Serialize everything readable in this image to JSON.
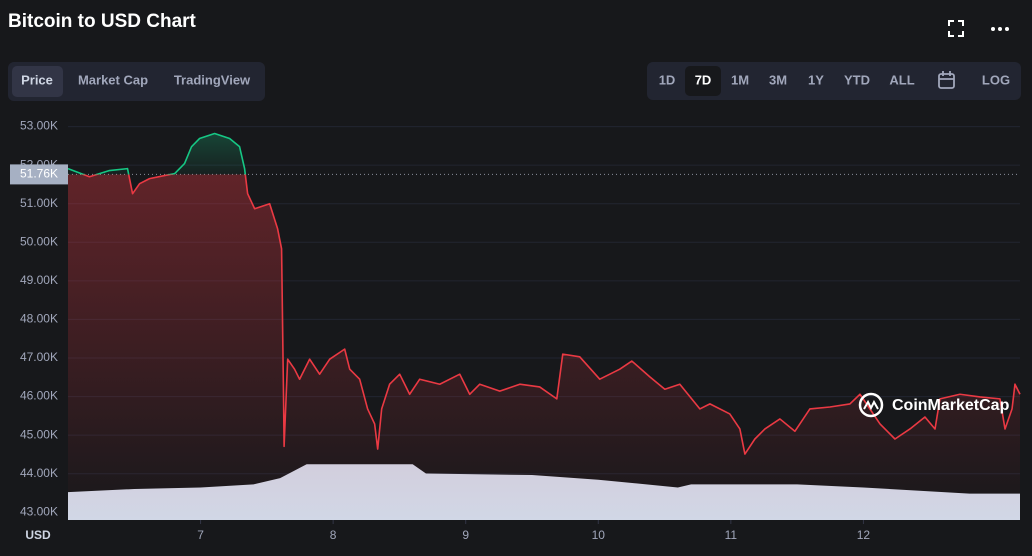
{
  "chart_data": {
    "type": "line",
    "title": "Bitcoin to USD Chart",
    "currency_label": "USD",
    "tabs": [
      "Price",
      "Market Cap",
      "TradingView"
    ],
    "ranges": [
      "1D",
      "7D",
      "1M",
      "3M",
      "1Y",
      "YTD",
      "ALL"
    ],
    "scale_button": "LOG",
    "watermark": "CoinMarketCap",
    "reference_price": {
      "value": 51760,
      "label": "51.76K"
    },
    "up_color": "#16c784",
    "down_color": "#ea3943",
    "x": [
      6.0,
      6.162,
      6.313,
      6.449,
      6.487,
      6.54,
      6.615,
      6.728,
      6.804,
      6.879,
      6.932,
      6.992,
      7.106,
      7.219,
      7.294,
      7.332,
      7.355,
      7.408,
      7.521,
      7.581,
      7.611,
      7.626,
      7.63,
      7.657,
      7.709,
      7.747,
      7.823,
      7.898,
      7.974,
      8.087,
      8.125,
      8.2,
      8.26,
      8.313,
      8.336,
      8.366,
      8.426,
      8.502,
      8.577,
      8.653,
      8.804,
      8.955,
      9.03,
      9.106,
      9.257,
      9.408,
      9.558,
      9.687,
      9.732,
      9.86,
      10.011,
      10.162,
      10.253,
      10.389,
      10.502,
      10.615,
      10.766,
      10.842,
      10.992,
      11.068,
      11.106,
      11.181,
      11.257,
      11.37,
      11.483,
      11.596,
      11.747,
      11.898,
      11.974,
      12.125,
      12.238,
      12.351,
      12.464,
      12.54,
      12.577,
      12.728,
      12.879,
      13.03,
      13.068,
      13.121,
      13.143,
      13.181
    ],
    "values": [
      51910,
      51700,
      51860,
      51910,
      51260,
      51520,
      51650,
      51730,
      51780,
      52040,
      52480,
      52690,
      52820,
      52690,
      52480,
      51910,
      51260,
      50870,
      51000,
      50350,
      49830,
      45940,
      44710,
      46970,
      46710,
      46450,
      46970,
      46580,
      46970,
      47230,
      46710,
      46450,
      45680,
      45290,
      44640,
      45680,
      46320,
      46580,
      46060,
      46450,
      46320,
      46580,
      46060,
      46320,
      46140,
      46320,
      46250,
      45940,
      47100,
      47030,
      46450,
      46710,
      46920,
      46510,
      46190,
      46320,
      45680,
      45810,
      45550,
      45160,
      44510,
      44900,
      45160,
      45420,
      45100,
      45680,
      45730,
      45810,
      46060,
      45290,
      44900,
      45160,
      45470,
      45160,
      45940,
      46060,
      45990,
      45940,
      45160,
      45680,
      46320,
      46060
    ],
    "volume": {
      "color": "#d1d7e6",
      "ylim": [
        0,
        100
      ],
      "x": [
        6.0,
        6.5,
        7.0,
        7.4,
        7.6,
        7.8,
        8.6,
        8.7,
        9.5,
        10.0,
        10.6,
        10.7,
        11.5,
        12.0,
        12.8,
        13.181
      ],
      "values": [
        18,
        20,
        21,
        23,
        27,
        36,
        36,
        30,
        29,
        26,
        21,
        23,
        23,
        21,
        17,
        17
      ]
    },
    "xlim": [
      6.0,
      13.181
    ],
    "xticks": [
      7,
      8,
      9,
      10,
      11,
      12
    ],
    "ylim": [
      42800,
      53300
    ],
    "yticks": [
      {
        "value": 43000,
        "label": "43.00K"
      },
      {
        "value": 44000,
        "label": "44.00K"
      },
      {
        "value": 45000,
        "label": "45.00K"
      },
      {
        "value": 46000,
        "label": "46.00K"
      },
      {
        "value": 47000,
        "label": "47.00K"
      },
      {
        "value": 48000,
        "label": "48.00K"
      },
      {
        "value": 49000,
        "label": "49.00K"
      },
      {
        "value": 50000,
        "label": "50.00K"
      },
      {
        "value": 51000,
        "label": "51.00K"
      },
      {
        "value": 52000,
        "label": "52.00K"
      },
      {
        "value": 53000,
        "label": "53.00K"
      }
    ],
    "grid": true
  }
}
